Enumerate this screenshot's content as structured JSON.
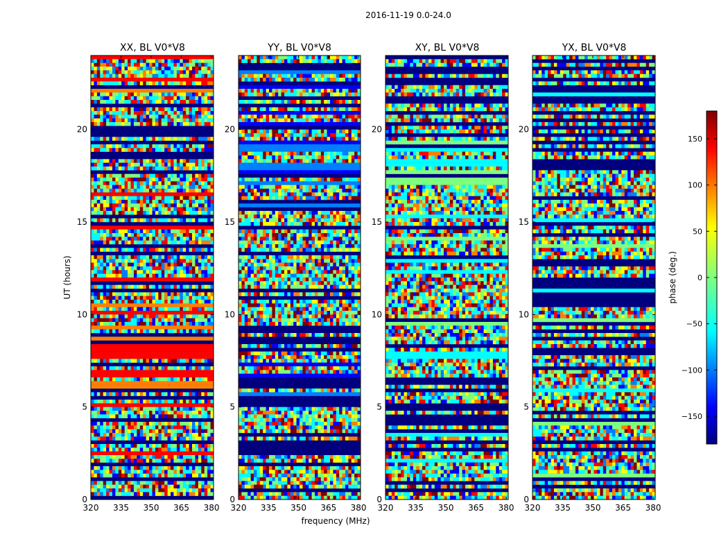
{
  "suptitle": "2016-11-19 0.0-24.0",
  "chart_data": {
    "type": "heatmap",
    "title": "2016-11-19 0.0-24.0",
    "xlabel": "frequency (MHz)",
    "ylabel": "UT (hours)",
    "xlim": [
      320,
      381
    ],
    "ylim": [
      0,
      24
    ],
    "xticks": [
      320,
      335,
      350,
      365,
      380
    ],
    "yticks": [
      0,
      5,
      10,
      15,
      20
    ],
    "colormap": "jet",
    "panels": [
      {
        "title": "XX, BL V0*V8",
        "polarization": "XX",
        "baseline": "V0*V8"
      },
      {
        "title": "YY, BL V0*V8",
        "polarization": "YY",
        "baseline": "V0*V8"
      },
      {
        "title": "XY, BL V0*V8",
        "polarization": "XY",
        "baseline": "V0*V8"
      },
      {
        "title": "YX, BL V0*V8",
        "polarization": "YX",
        "baseline": "V0*V8"
      }
    ],
    "colorbar": {
      "label": "phase (deg.)",
      "range": [
        -180,
        180
      ],
      "ticks": [
        150,
        100,
        50,
        0,
        -50,
        -100,
        -150
      ],
      "tick_labels": [
        "150",
        "100",
        "50",
        "0",
        "−50",
        "−100",
        "−150"
      ]
    }
  },
  "colors": {
    "jet": [
      "#00007f",
      "#0000ff",
      "#007fff",
      "#00ffff",
      "#7fff7f",
      "#ffff00",
      "#ff7f00",
      "#ff0000",
      "#7f0000"
    ]
  }
}
